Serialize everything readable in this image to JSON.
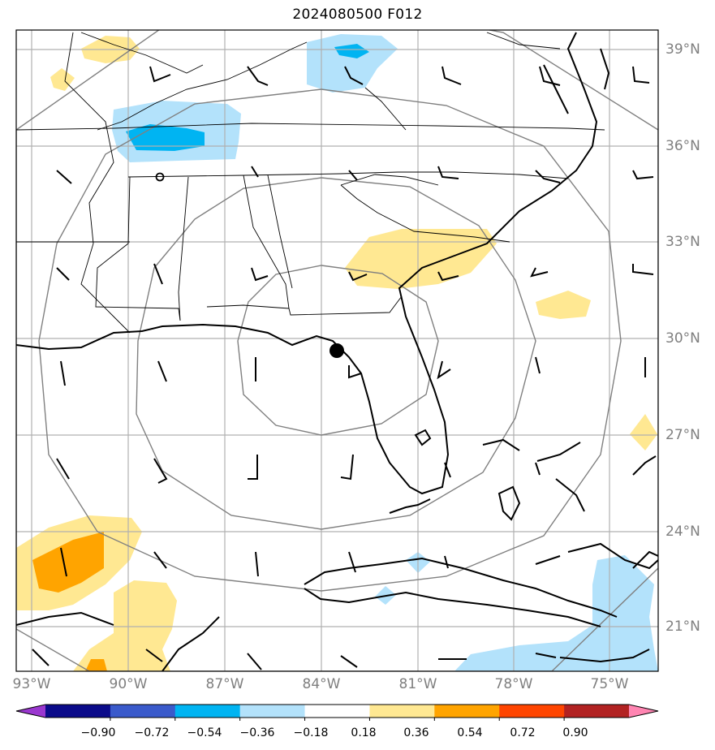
{
  "title": "2024080500 F012",
  "longitude_labels": [
    "93°W",
    "90°W",
    "87°W",
    "84°W",
    "81°W",
    "78°W",
    "75°W"
  ],
  "latitude_labels": [
    "39°N",
    "36°N",
    "33°N",
    "30°N",
    "27°N",
    "24°N",
    "21°N"
  ],
  "colorbar": {
    "tick_labels": [
      "−0.90",
      "−0.72",
      "−0.54",
      "−0.36",
      "−0.18",
      "0.18",
      "0.36",
      "0.54",
      "0.72",
      "0.90"
    ],
    "colors": [
      "#9a37cf",
      "#0b0b8a",
      "#3a5acb",
      "#00b4f2",
      "#b3e2fb",
      "#ffffff",
      "#ffe892",
      "#ffa400",
      "#ff4500",
      "#b22222",
      "#ff85b2"
    ]
  },
  "colors": {
    "grid": "#b0b0b0",
    "range_rings": "#808080",
    "coast": "#000000",
    "fill_light_blue": "#b3e2fb",
    "fill_blue": "#00b4f2",
    "fill_yellow": "#ffe892",
    "fill_orange": "#ffa400"
  },
  "markers": {
    "storm_center": "filled-circle",
    "secondary": "open-circle"
  }
}
